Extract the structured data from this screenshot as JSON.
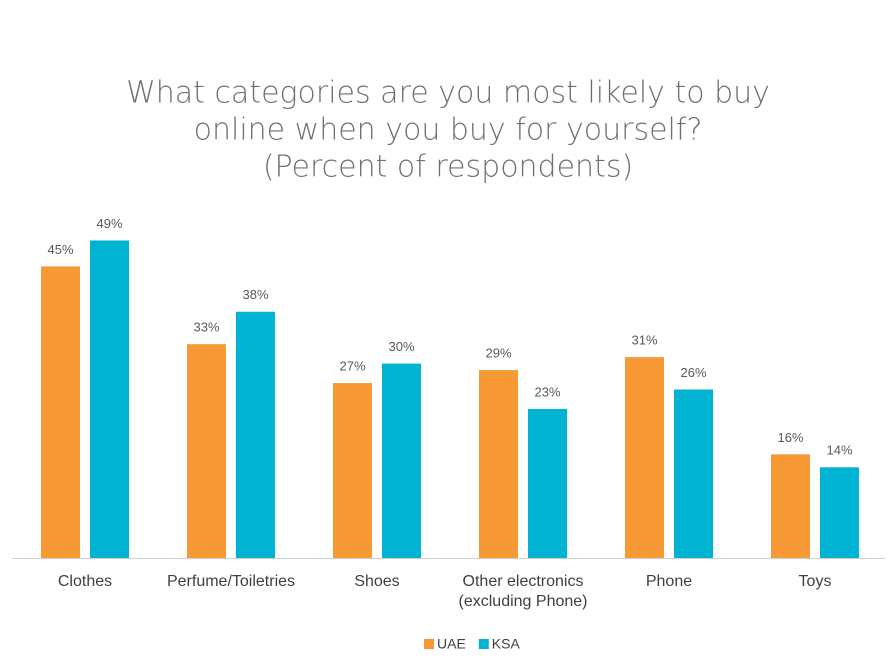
{
  "chart_data": {
    "type": "bar",
    "title": [
      "What categories are you most likely to buy",
      "online when you buy for yourself?",
      "(Percent of respondents)"
    ],
    "categories": [
      "Clothes",
      "Perfume/Toiletries",
      "Shoes",
      "Other electronics\n(excluding Phone)",
      "Phone",
      "Toys"
    ],
    "series": [
      {
        "name": "UAE",
        "color": "#f79a35",
        "values": [
          45,
          33,
          27,
          29,
          31,
          16
        ],
        "value_labels": [
          "45%",
          "33%",
          "27%",
          "29%",
          "31%",
          "16%"
        ]
      },
      {
        "name": "KSA",
        "color": "#00b3d3",
        "values": [
          49,
          38,
          30,
          23,
          26,
          14
        ],
        "value_labels": [
          "49%",
          "38%",
          "30%",
          "23%",
          "26%",
          "14%"
        ]
      }
    ],
    "legend": "bottom"
  }
}
